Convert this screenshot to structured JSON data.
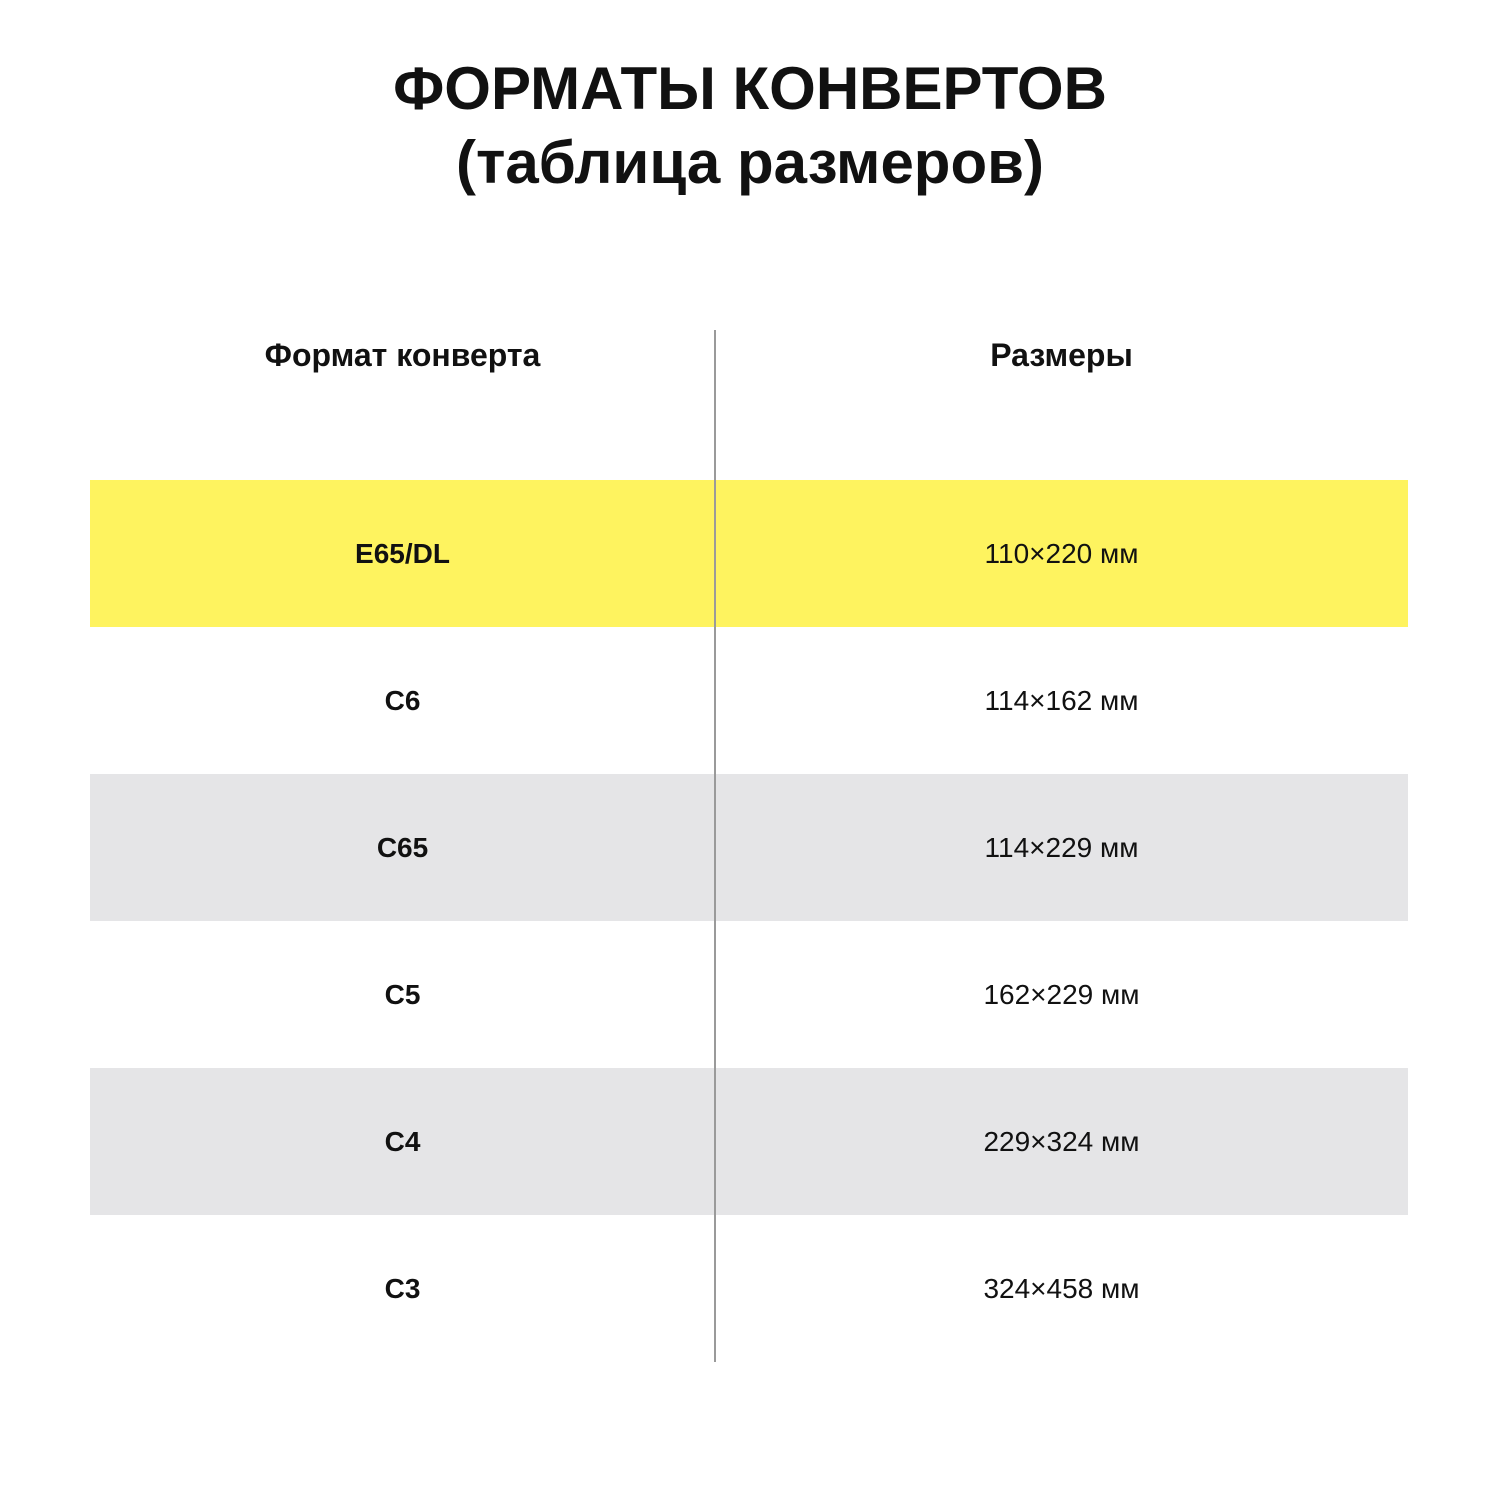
{
  "title": {
    "line1": "ФОРМАТЫ КОНВЕРТОВ",
    "line2": "(таблица размеров)"
  },
  "table": {
    "headers": [
      "Формат конверта",
      "Размеры"
    ],
    "rows": [
      {
        "format": "E65/DL",
        "size": "110×220 мм",
        "bg": "#fef35f"
      },
      {
        "format": "C6",
        "size": "114×162 мм",
        "bg": "#ffffff"
      },
      {
        "format": "C65",
        "size": "114×229 мм",
        "bg": "#e5e5e7"
      },
      {
        "format": "C5",
        "size": "162×229 мм",
        "bg": "#ffffff"
      },
      {
        "format": "C4",
        "size": "229×324 мм",
        "bg": "#e5e5e7"
      },
      {
        "format": "C3",
        "size": "324×458 мм",
        "bg": "#ffffff"
      }
    ]
  },
  "colors": {
    "highlight": "#fef35f",
    "stripe": "#e5e5e7",
    "divider": "#9a9a9a"
  }
}
